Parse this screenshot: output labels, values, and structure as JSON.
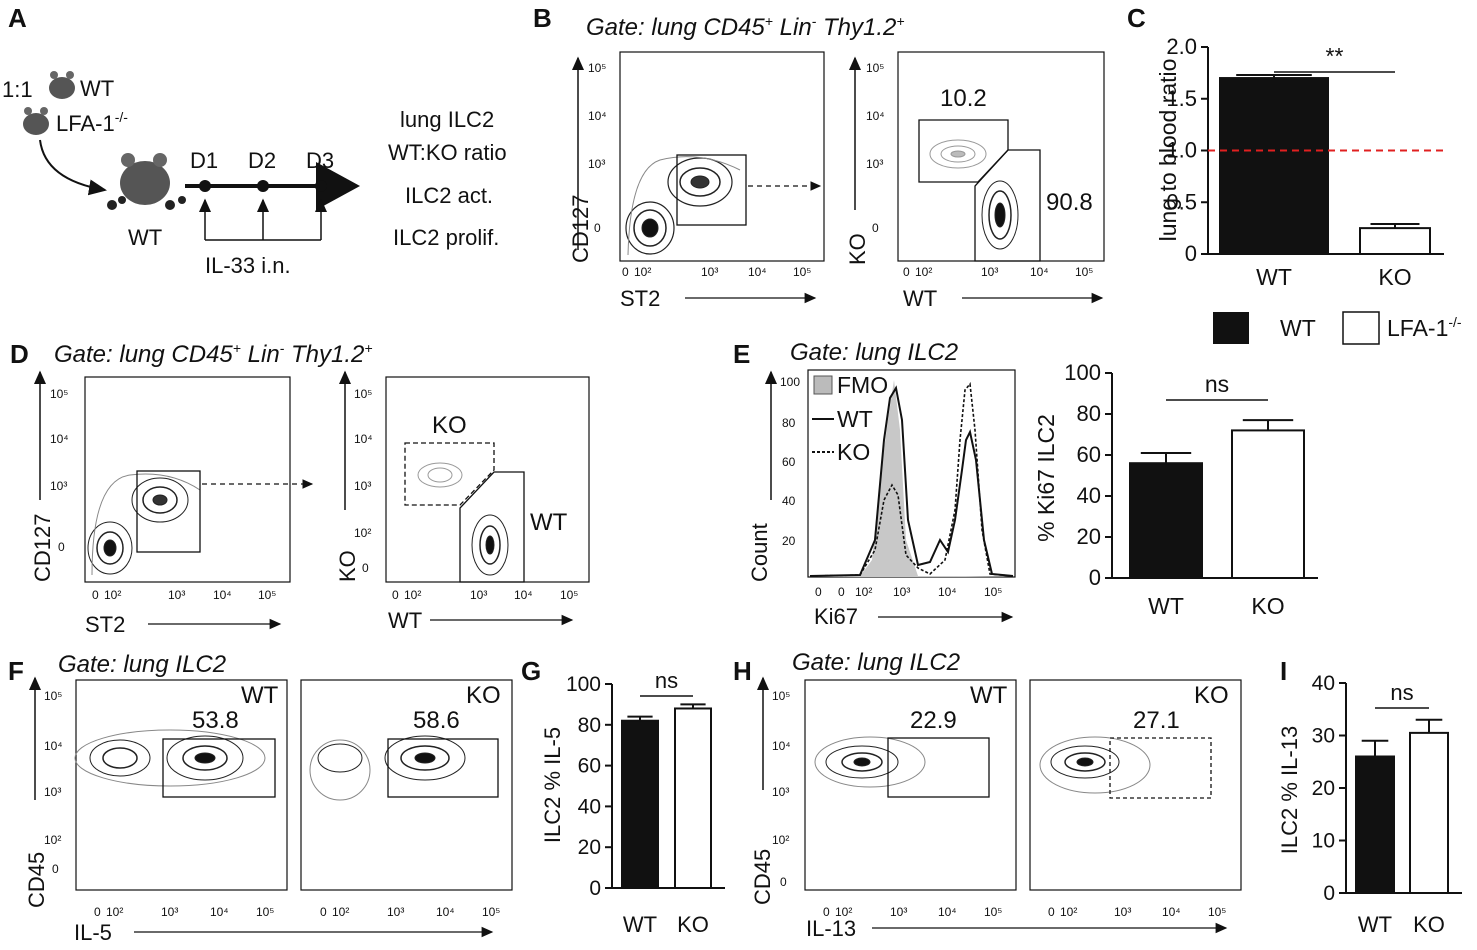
{
  "panels": {
    "A": "A",
    "B": "B",
    "C": "C",
    "D": "D",
    "E": "E",
    "F": "F",
    "G": "G",
    "H": "H",
    "I": "I"
  },
  "panelA": {
    "ratio": "1:1",
    "wt": "WT",
    "lfa_base": "LFA-1",
    "lfa_sup": "-/-",
    "host": "WT",
    "days": [
      "D1",
      "D2",
      "D3"
    ],
    "treatment": "IL-33 i.n.",
    "readouts": [
      "lung ILC2",
      "WT:KO ratio",
      "ILC2 act.",
      "ILC2 prolif."
    ]
  },
  "gate_bd": {
    "prefix": "Gate: lung CD45",
    "p1": "+",
    "lin": " Lin",
    "p2": "-",
    "thy": " Thy1.2",
    "p3": "+"
  },
  "gate_ilc2": "Gate: lung ILC2",
  "log_ticks": [
    "0",
    "10²",
    "10³",
    "10⁴",
    "10⁵"
  ],
  "y_ticks": [
    "10⁵",
    "10⁴",
    "10³",
    "10²",
    "0"
  ],
  "y_ticks_short": [
    "10⁵",
    "10⁴",
    "10³",
    "0"
  ],
  "axis": {
    "cd127": "CD127",
    "st2": "ST2",
    "ko": "KO",
    "wt": "WT",
    "cd45": "CD45",
    "il5": "IL-5",
    "il13": "IL-13",
    "ki67": "Ki67",
    "count": "Count"
  },
  "panelB": {
    "ko_pct": "10.2",
    "wt_pct": "90.8"
  },
  "panelD": {
    "ko": "KO",
    "wt": "WT"
  },
  "panelE_hist": {
    "yticks": [
      "100",
      "80",
      "60",
      "40",
      "20"
    ],
    "legend": [
      "FMO",
      "WT",
      "KO"
    ]
  },
  "panelF": {
    "wt_label": "WT",
    "wt_pct": "53.8",
    "ko_label": "KO",
    "ko_pct": "58.6"
  },
  "panelH": {
    "wt_label": "WT",
    "wt_pct": "22.9",
    "ko_label": "KO",
    "ko_pct": "27.1"
  },
  "legend": {
    "wt": "WT",
    "lfa_base": "LFA-1",
    "lfa_sup": "-/-"
  },
  "chart_data": [
    {
      "panel": "C",
      "type": "bar",
      "categories": [
        "WT",
        "KO"
      ],
      "values": [
        1.7,
        0.25
      ],
      "errors": [
        0.03,
        0.04
      ],
      "ylabel": "lung to blood ratio",
      "ylim": [
        0,
        2.0
      ],
      "yticks": [
        "2.0",
        "1.5",
        "1.0",
        "0.5",
        "0"
      ],
      "reference_line": 1.0,
      "significance": "**"
    },
    {
      "panel": "E",
      "type": "bar",
      "categories": [
        "WT",
        "KO"
      ],
      "values": [
        56,
        72
      ],
      "errors": [
        5,
        5
      ],
      "ylabel": "% Ki67 ILC2",
      "ylim": [
        0,
        100
      ],
      "yticks": [
        "100",
        "80",
        "60",
        "40",
        "20",
        "0"
      ],
      "significance": "ns"
    },
    {
      "panel": "G",
      "type": "bar",
      "categories": [
        "WT",
        "KO"
      ],
      "values": [
        82,
        88
      ],
      "errors": [
        2,
        2
      ],
      "ylabel": "ILC2 % IL-5",
      "ylim": [
        0,
        100
      ],
      "yticks": [
        "100",
        "80",
        "60",
        "40",
        "20",
        "0"
      ],
      "significance": "ns"
    },
    {
      "panel": "I",
      "type": "bar",
      "categories": [
        "WT",
        "KO"
      ],
      "values": [
        26,
        30.5
      ],
      "errors": [
        3,
        2.5
      ],
      "ylabel": "ILC2 % IL-13",
      "ylim": [
        0,
        40
      ],
      "yticks": [
        "40",
        "30",
        "20",
        "10",
        "0"
      ],
      "significance": "ns"
    }
  ]
}
